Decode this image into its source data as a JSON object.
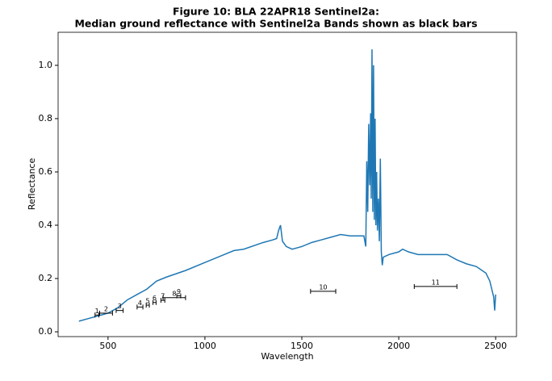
{
  "chart_data": {
    "type": "line",
    "title": "Figure 10: BLA 22APR18  Sentinel2a:",
    "subtitle": "Median ground reflectance with Sentinel2a Bands shown as black bars",
    "xlabel": "Wavelength",
    "ylabel": "Reflectance",
    "xlim": [
      242.5,
      2607.5
    ],
    "ylim": [
      -0.018,
      1.124
    ],
    "xticks": [
      500,
      1000,
      1500,
      2000,
      2500
    ],
    "yticks": [
      {
        "value": 0,
        "label": "0.0"
      },
      {
        "value": 0.2,
        "label": "0.2"
      },
      {
        "value": 0.4,
        "label": "0.4"
      },
      {
        "value": 0.6,
        "label": "0.6"
      },
      {
        "value": 0.8,
        "label": "0.8"
      },
      {
        "value": 1.0,
        "label": "1.0"
      }
    ],
    "series": [
      {
        "color": "#1f77b4",
        "x": [
          350,
          400,
          450,
          500,
          550,
          600,
          650,
          700,
          750,
          800,
          900,
          1000,
          1100,
          1150,
          1200,
          1300,
          1350,
          1370,
          1380,
          1390,
          1400,
          1420,
          1450,
          1500,
          1550,
          1600,
          1650,
          1700,
          1750,
          1800,
          1820,
          1830,
          1835,
          1840,
          1845,
          1850,
          1855,
          1858,
          1862,
          1866,
          1870,
          1874,
          1878,
          1882,
          1886,
          1890,
          1895,
          1900,
          1905,
          1910,
          1915,
          1920,
          1950,
          2000,
          2020,
          2050,
          2100,
          2150,
          2200,
          2250,
          2300,
          2350,
          2400,
          2450,
          2470,
          2490,
          2495,
          2500
        ],
        "values": [
          0.04,
          0.05,
          0.06,
          0.07,
          0.09,
          0.12,
          0.14,
          0.16,
          0.19,
          0.205,
          0.23,
          0.26,
          0.29,
          0.305,
          0.31,
          0.335,
          0.345,
          0.35,
          0.38,
          0.4,
          0.34,
          0.32,
          0.31,
          0.32,
          0.335,
          0.345,
          0.355,
          0.365,
          0.36,
          0.36,
          0.36,
          0.32,
          0.64,
          0.45,
          0.78,
          0.55,
          0.82,
          0.5,
          1.06,
          0.45,
          1.0,
          0.42,
          0.8,
          0.4,
          0.6,
          0.38,
          0.5,
          0.34,
          0.65,
          0.3,
          0.25,
          0.28,
          0.29,
          0.3,
          0.31,
          0.3,
          0.29,
          0.29,
          0.29,
          0.29,
          0.27,
          0.255,
          0.245,
          0.22,
          0.19,
          0.13,
          0.08,
          0.14
        ]
      }
    ],
    "bands": {
      "labels": [
        "1",
        "2",
        "3",
        "4",
        "5",
        "6",
        "7",
        "8",
        "9",
        "10",
        "11"
      ],
      "center": [
        443,
        490,
        560,
        665,
        705,
        740,
        783,
        842,
        865,
        1610,
        2190
      ],
      "halfwidth": [
        10,
        33,
        18,
        15,
        8,
        8,
        10,
        58,
        10,
        65,
        110
      ],
      "y": [
        0.063,
        0.07,
        0.08,
        0.093,
        0.1,
        0.11,
        0.118,
        0.128,
        0.135,
        0.152,
        0.17
      ],
      "color": "#000000"
    }
  }
}
